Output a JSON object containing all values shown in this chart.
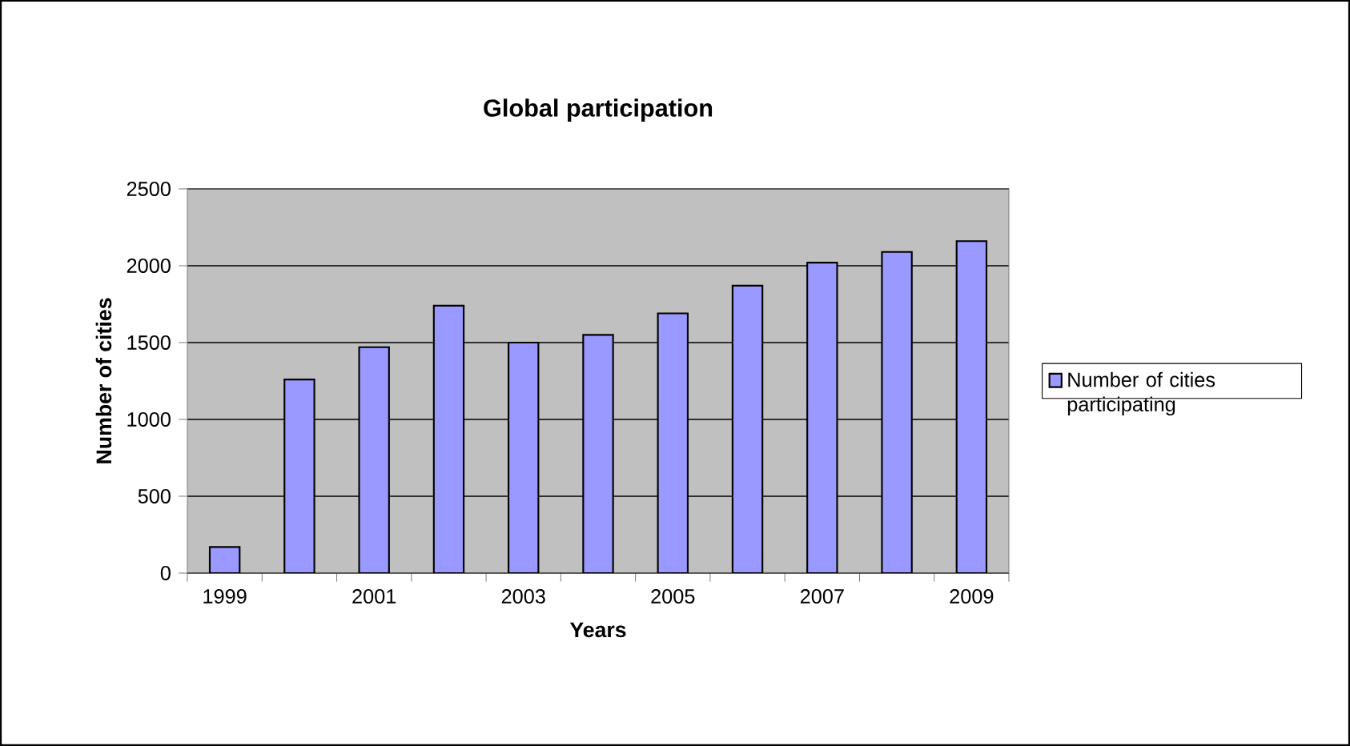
{
  "chart_data": {
    "type": "bar",
    "title": "**Global participation**",
    "xlabel": "**Years**",
    "ylabel": "**Number of cities**",
    "categories": [
      "1999",
      null,
      "2001",
      null,
      "2003",
      null,
      "2005",
      null,
      "2007",
      null,
      "2009"
    ],
    "series": [
      {
        "name": "Number of cities participating",
        "color": "#9999ff",
        "values": [
          170,
          1260,
          1470,
          1740,
          1500,
          1550,
          1690,
          1870,
          2020,
          2090,
          2160
        ]
      }
    ],
    "ylim": [
      0,
      2500
    ],
    "yticks": [
      0,
      500,
      1000,
      1500,
      2000,
      2500
    ],
    "grid": "y",
    "legend": "right"
  }
}
